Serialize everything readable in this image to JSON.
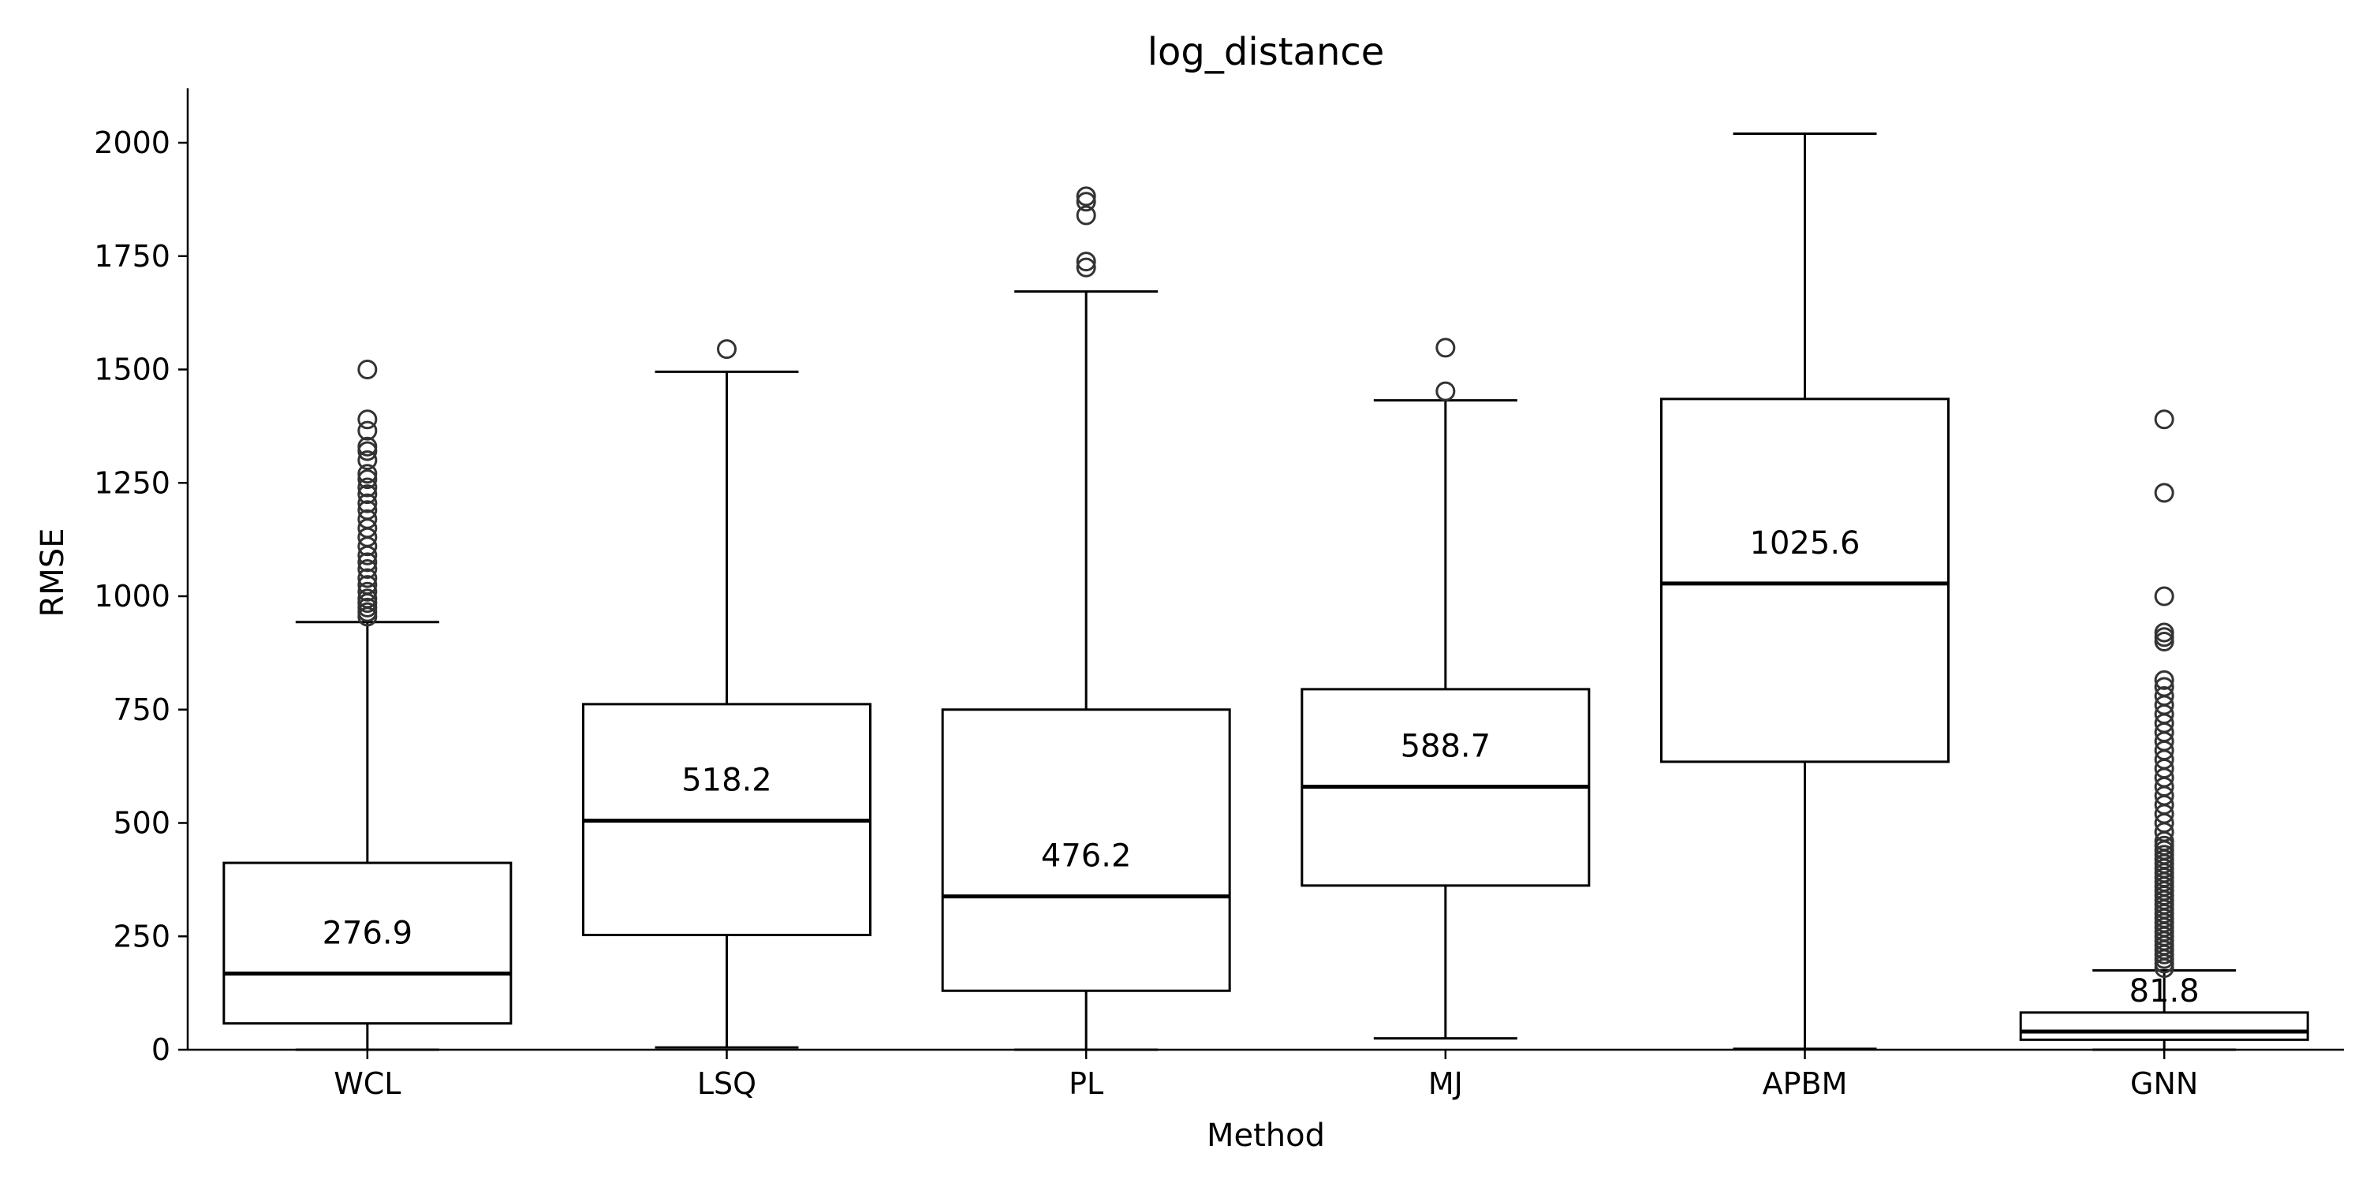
{
  "chart_data": {
    "type": "box",
    "title": "log_distance",
    "xlabel": "Method",
    "ylabel": "RMSE",
    "ylim": [
      0,
      2120
    ],
    "yticks": [
      0,
      250,
      500,
      750,
      1000,
      1250,
      1500,
      1750,
      2000
    ],
    "ytick_labels": [
      "0",
      "250",
      "500",
      "750",
      "1000",
      "1250",
      "1500",
      "1750",
      "2000"
    ],
    "grid": false,
    "categories": [
      "WCL",
      "LSQ",
      "PL",
      "MJ",
      "APBM",
      "GNN"
    ],
    "boxes": [
      {
        "category": "WCL",
        "whisker_low": 0,
        "q1": 58,
        "median": 168,
        "q3": 412,
        "whisker_high": 943,
        "mean_label": "276.9",
        "outliers": [
          955,
          965,
          975,
          985,
          995,
          1010,
          1025,
          1040,
          1060,
          1075,
          1090,
          1110,
          1130,
          1150,
          1170,
          1190,
          1205,
          1225,
          1240,
          1258,
          1270,
          1300,
          1320,
          1330,
          1365,
          1390,
          1500
        ]
      },
      {
        "category": "LSQ",
        "whisker_low": 5,
        "q1": 253,
        "median": 505,
        "q3": 762,
        "whisker_high": 1495,
        "mean_label": "518.2",
        "outliers": [
          1545
        ]
      },
      {
        "category": "PL",
        "whisker_low": 0,
        "q1": 130,
        "median": 338,
        "q3": 750,
        "whisker_high": 1672,
        "mean_label": "476.2",
        "outliers": [
          1725,
          1738,
          1840,
          1870,
          1882
        ]
      },
      {
        "category": "MJ",
        "whisker_low": 25,
        "q1": 362,
        "median": 580,
        "q3": 795,
        "whisker_high": 1432,
        "mean_label": "588.7",
        "outliers": [
          1452,
          1548
        ]
      },
      {
        "category": "APBM",
        "whisker_low": 2,
        "q1": 635,
        "median": 1028,
        "q3": 1435,
        "whisker_high": 2020,
        "mean_label": "1025.6",
        "outliers": []
      },
      {
        "category": "GNN",
        "whisker_low": 0,
        "q1": 22,
        "median": 40,
        "q3": 82,
        "whisker_high": 175,
        "mean_label": "81.8",
        "outliers": [
          180,
          190,
          200,
          210,
          220,
          230,
          240,
          250,
          260,
          270,
          280,
          290,
          300,
          310,
          320,
          330,
          340,
          350,
          360,
          370,
          380,
          390,
          400,
          410,
          420,
          430,
          440,
          450,
          460,
          480,
          500,
          520,
          540,
          560,
          580,
          600,
          620,
          640,
          660,
          680,
          700,
          720,
          740,
          760,
          780,
          800,
          815,
          900,
          910,
          920,
          1000,
          1228,
          1390
        ]
      }
    ]
  }
}
